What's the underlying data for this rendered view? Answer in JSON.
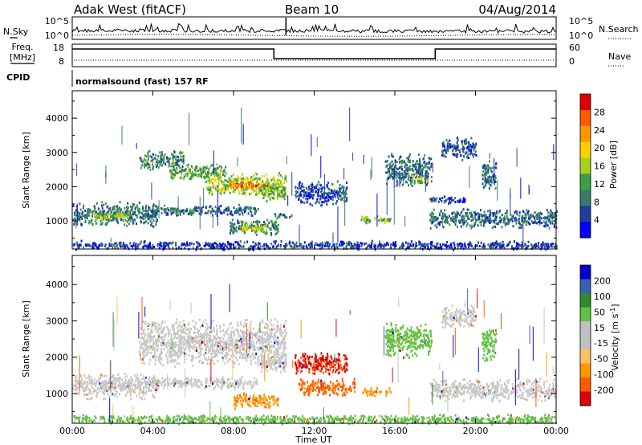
{
  "header": {
    "title": "Adak West (fitACF)",
    "beam": "Beam 10",
    "date": "04/Aug/2014"
  },
  "noise_panel": {
    "left_label": "N.Sky",
    "right_label": "N.Search",
    "left_ticks": [
      "10^5",
      "10^0"
    ],
    "right_ticks": [
      "10^5",
      "10^0"
    ]
  },
  "freq_panel": {
    "left_label_line1": "Freq.",
    "left_label_line2": "[MHz]",
    "right_label": "Nave",
    "left_ticks": [
      "18",
      "8"
    ],
    "right_ticks": [
      "60",
      "0"
    ],
    "freq_steps": [
      {
        "start": "00:00",
        "end": "10:00",
        "level": "high"
      },
      {
        "start": "10:00",
        "end": "18:00",
        "level": "low"
      },
      {
        "start": "18:00",
        "end": "24:00",
        "level": "high"
      }
    ]
  },
  "cpid_panel": {
    "label": "CPID",
    "program": "normalsound (fast) 157 RF"
  },
  "colors": {
    "power_scale": [
      "#0000ff",
      "#1e3fa0",
      "#3a7a6a",
      "#3aa040",
      "#a8d020",
      "#ffd000",
      "#ff9600",
      "#ff5a00",
      "#dd0000"
    ],
    "velocity_scale": [
      "#dd0000",
      "#ff5a00",
      "#ff9600",
      "#ffc060",
      "#c0c0c0",
      "#c0c0c0",
      "#60c040",
      "#2d8a2d",
      "#3a5fb0",
      "#0000cc"
    ],
    "ground_scatter": "#c8c8c8"
  },
  "chart_data": [
    {
      "panel": "power",
      "type": "heatmap",
      "xlabel": "Time UT",
      "ylabel": "Slant Range [km]",
      "x_ticks": [
        "00:00",
        "04:00",
        "08:00",
        "12:00",
        "16:00",
        "20:00",
        "00:00"
      ],
      "y_ticks": [
        4000,
        3000,
        2000,
        1000
      ],
      "xlim_hours": [
        0,
        24
      ],
      "ylim_km": [
        180,
        4800
      ],
      "colorbar": {
        "label": "Power [dB]",
        "range": [
          0,
          32
        ],
        "ticks": [
          28,
          24,
          20,
          16,
          12,
          8,
          4
        ]
      },
      "regions": [
        {
          "t0": 0.0,
          "t1": 4.2,
          "r0": 850,
          "r1": 1600,
          "power": 9
        },
        {
          "t0": 1.0,
          "t1": 2.8,
          "r0": 1050,
          "r1": 1300,
          "power": 16
        },
        {
          "t0": 3.6,
          "t1": 9.2,
          "r0": 1150,
          "r1": 1500,
          "power": 8
        },
        {
          "t0": 7.8,
          "t1": 10.2,
          "r0": 600,
          "r1": 1100,
          "power": 10
        },
        {
          "t0": 8.3,
          "t1": 9.6,
          "r0": 700,
          "r1": 950,
          "power": 18
        },
        {
          "t0": 3.3,
          "t1": 5.5,
          "r0": 2500,
          "r1": 3100,
          "power": 10
        },
        {
          "t0": 4.8,
          "t1": 7.6,
          "r0": 2200,
          "r1": 2700,
          "power": 12
        },
        {
          "t0": 6.6,
          "t1": 10.6,
          "r0": 1750,
          "r1": 2450,
          "power": 16
        },
        {
          "t0": 7.6,
          "t1": 9.6,
          "r0": 1950,
          "r1": 2200,
          "power": 24
        },
        {
          "t0": 9.3,
          "t1": 10.6,
          "r0": 1600,
          "r1": 2200,
          "power": 14
        },
        {
          "t0": 11.0,
          "t1": 13.6,
          "r0": 1450,
          "r1": 2200,
          "power": 6
        },
        {
          "t0": 10.0,
          "t1": 10.9,
          "r0": 1100,
          "r1": 1250,
          "power": 8
        },
        {
          "t0": 14.3,
          "t1": 15.8,
          "r0": 950,
          "r1": 1200,
          "power": 14
        },
        {
          "t0": 15.5,
          "t1": 17.8,
          "r0": 2000,
          "r1": 3000,
          "power": 8
        },
        {
          "t0": 16.8,
          "t1": 17.6,
          "r0": 2100,
          "r1": 2400,
          "power": 16
        },
        {
          "t0": 17.7,
          "t1": 19.5,
          "r0": 1500,
          "r1": 1750,
          "power": 6
        },
        {
          "t0": 17.7,
          "t1": 24.0,
          "r0": 800,
          "r1": 1400,
          "power": 8
        },
        {
          "t0": 18.3,
          "t1": 20.0,
          "r0": 2800,
          "r1": 3500,
          "power": 6
        },
        {
          "t0": 20.3,
          "t1": 21.0,
          "r0": 1900,
          "r1": 2900,
          "power": 8
        },
        {
          "t0": 0.0,
          "t1": 24.0,
          "r0": 180,
          "r1": 450,
          "power": 5
        }
      ]
    },
    {
      "panel": "velocity",
      "type": "heatmap",
      "xlabel": "Time UT",
      "ylabel": "Slant Range [km]",
      "x_ticks": [
        "00:00",
        "04:00",
        "08:00",
        "12:00",
        "16:00",
        "20:00",
        "00:00"
      ],
      "y_ticks": [
        4000,
        3000,
        2000,
        1000
      ],
      "xlim_hours": [
        0,
        24
      ],
      "ylim_km": [
        180,
        4800
      ],
      "colorbar": {
        "label": "Velocity [m s^-1]",
        "units_display": "m s",
        "units_exponent": "-1",
        "label_prefix": "Velocity [",
        "label_suffix": "]",
        "ticks": [
          "200",
          "100",
          "50",
          "15",
          "-15",
          "-50",
          "-100",
          "-200"
        ]
      },
      "regions": [
        {
          "t0": 0.0,
          "t1": 4.2,
          "r0": 850,
          "r1": 1600,
          "velocity": "ground"
        },
        {
          "t0": 3.6,
          "t1": 9.2,
          "r0": 1150,
          "r1": 1500,
          "velocity": "ground"
        },
        {
          "t0": 3.3,
          "t1": 10.6,
          "r0": 1750,
          "r1": 3100,
          "velocity": "ground"
        },
        {
          "t0": 9.3,
          "t1": 10.6,
          "r0": 1600,
          "r1": 2200,
          "velocity": "ground"
        },
        {
          "t0": 8.0,
          "t1": 10.2,
          "r0": 600,
          "r1": 1050,
          "velocity": -80
        },
        {
          "t0": 11.0,
          "t1": 13.6,
          "r0": 1500,
          "r1": 2200,
          "velocity": -220
        },
        {
          "t0": 11.2,
          "t1": 14.0,
          "r0": 950,
          "r1": 1450,
          "velocity": -120
        },
        {
          "t0": 14.3,
          "t1": 15.8,
          "r0": 950,
          "r1": 1200,
          "velocity": -60
        },
        {
          "t0": 15.5,
          "t1": 17.8,
          "r0": 2000,
          "r1": 3000,
          "velocity": 30
        },
        {
          "t0": 18.3,
          "t1": 20.0,
          "r0": 2800,
          "r1": 3500,
          "velocity": "ground"
        },
        {
          "t0": 20.3,
          "t1": 21.0,
          "r0": 1900,
          "r1": 2900,
          "velocity": 30
        },
        {
          "t0": 17.7,
          "t1": 24.0,
          "r0": 800,
          "r1": 1450,
          "velocity": "ground"
        },
        {
          "t0": 0.0,
          "t1": 24.0,
          "r0": 180,
          "r1": 450,
          "velocity": 20
        }
      ]
    }
  ]
}
